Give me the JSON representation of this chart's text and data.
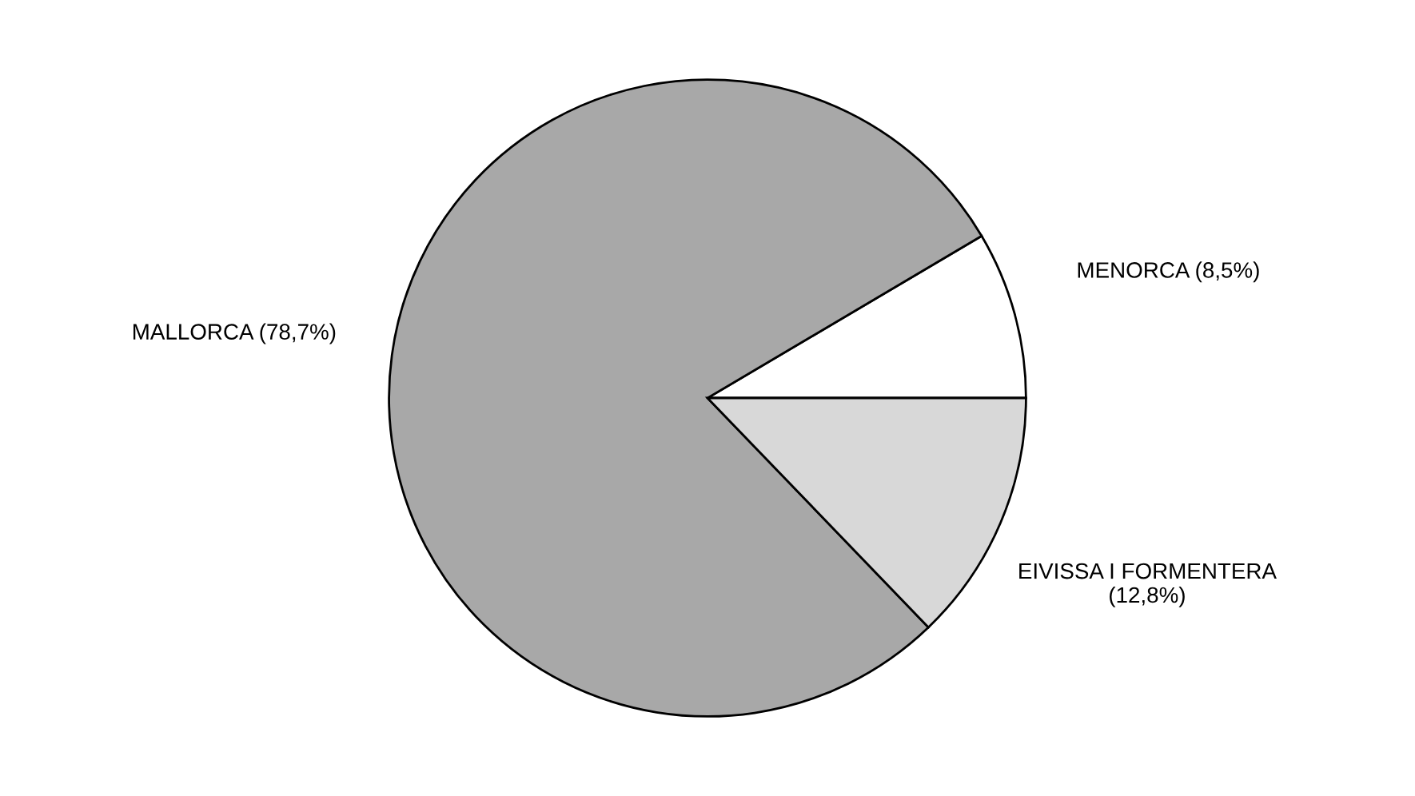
{
  "chart_data": {
    "type": "pie",
    "categories": [
      "MENORCA",
      "MALLORCA",
      "EIVISSA I FORMENTERA"
    ],
    "values": [
      8.5,
      78.7,
      12.8
    ],
    "value_labels": [
      "(8,5%)",
      "(78,7%)",
      "(12,8%)"
    ],
    "colors": [
      "#ffffff",
      "#a8a8a8",
      "#d8d8d8"
    ],
    "legend": false
  }
}
